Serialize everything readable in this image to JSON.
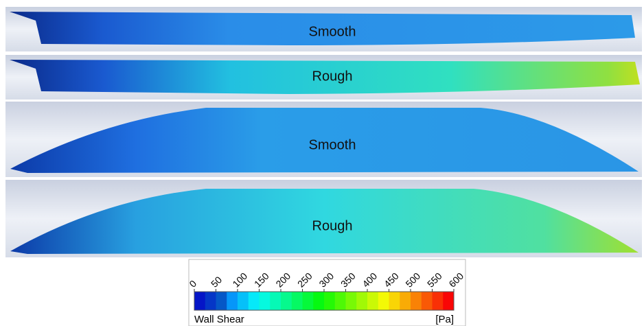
{
  "panels": [
    {
      "label": "Smooth"
    },
    {
      "label": "Rough"
    },
    {
      "label": "Smooth"
    },
    {
      "label": "Rough"
    }
  ],
  "colorbar": {
    "title": "Wall Shear",
    "unit": "[Pa]",
    "range": [
      0,
      600
    ],
    "ticks": [
      0,
      50,
      100,
      150,
      200,
      250,
      300,
      350,
      400,
      450,
      500,
      550,
      600
    ]
  }
}
